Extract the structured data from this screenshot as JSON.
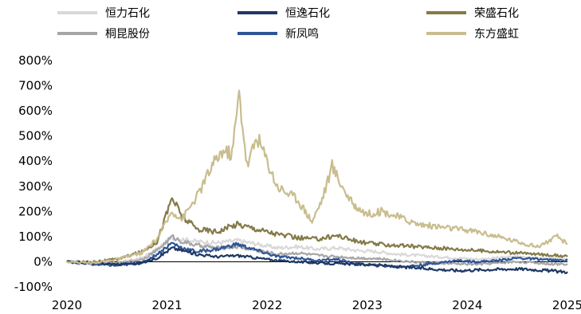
{
  "chart_data": {
    "type": "line",
    "title": "",
    "xlabel": "",
    "ylabel": "",
    "ylim": [
      -100,
      800
    ],
    "y_ticks": [
      -100,
      0,
      100,
      200,
      300,
      400,
      500,
      600,
      700,
      800
    ],
    "y_tick_labels": [
      "-100%",
      "0%",
      "100%",
      "200%",
      "300%",
      "400%",
      "500%",
      "600%",
      "700%",
      "800%"
    ],
    "xlim": [
      2020.0,
      2025.0
    ],
    "x_ticks": [
      2020,
      2021,
      2022,
      2023,
      2024,
      2025
    ],
    "x_tick_labels": [
      "2020",
      "2021",
      "2022",
      "2023",
      "2024",
      "2025"
    ],
    "zero_line": true,
    "grid": false,
    "legend_position": "top",
    "series": [
      {
        "name": "恒力石化",
        "color": "#d9d9d9",
        "x": [
          2020.0,
          2020.25,
          2020.5,
          2020.75,
          2020.9,
          2021.05,
          2021.15,
          2021.3,
          2021.5,
          2021.7,
          2021.9,
          2022.1,
          2022.3,
          2022.5,
          2022.7,
          2022.9,
          2023.1,
          2023.3,
          2023.5,
          2023.7,
          2023.9,
          2024.1,
          2024.3,
          2024.5,
          2024.7,
          2024.9,
          2025.0
        ],
        "values": [
          0,
          -3,
          -5,
          15,
          50,
          95,
          90,
          80,
          75,
          85,
          70,
          55,
          60,
          50,
          55,
          45,
          40,
          30,
          25,
          20,
          15,
          10,
          15,
          20,
          15,
          10,
          12
        ]
      },
      {
        "name": "桐昆股份",
        "color": "#a6a6a6",
        "x": [
          2020.0,
          2020.25,
          2020.5,
          2020.75,
          2020.9,
          2021.05,
          2021.15,
          2021.3,
          2021.5,
          2021.7,
          2021.9,
          2022.1,
          2022.3,
          2022.5,
          2022.7,
          2022.9,
          2023.1,
          2023.3,
          2023.5,
          2023.7,
          2023.9,
          2024.1,
          2024.3,
          2024.5,
          2024.7,
          2024.9,
          2025.0
        ],
        "values": [
          0,
          -5,
          -8,
          10,
          45,
          100,
          80,
          65,
          55,
          60,
          45,
          30,
          35,
          25,
          20,
          15,
          12,
          5,
          -2,
          -5,
          -8,
          -10,
          -5,
          0,
          -5,
          -10,
          -8
        ]
      },
      {
        "name": "恒逸石化",
        "color": "#1f3864",
        "x": [
          2020.0,
          2020.25,
          2020.5,
          2020.75,
          2020.9,
          2021.05,
          2021.15,
          2021.3,
          2021.5,
          2021.7,
          2021.9,
          2022.1,
          2022.3,
          2022.5,
          2022.7,
          2022.9,
          2023.1,
          2023.3,
          2023.5,
          2023.7,
          2023.9,
          2024.1,
          2024.3,
          2024.5,
          2024.7,
          2024.9,
          2025.0
        ],
        "values": [
          0,
          -5,
          -10,
          -5,
          15,
          55,
          45,
          30,
          20,
          25,
          15,
          5,
          0,
          -5,
          -8,
          -10,
          -12,
          -20,
          -25,
          -30,
          -35,
          -32,
          -30,
          -28,
          -32,
          -38,
          -40
        ]
      },
      {
        "name": "新凤鸣",
        "color": "#2e5597",
        "x": [
          2020.0,
          2020.25,
          2020.5,
          2020.75,
          2020.9,
          2021.05,
          2021.15,
          2021.3,
          2021.5,
          2021.7,
          2021.9,
          2022.1,
          2022.3,
          2022.5,
          2022.7,
          2022.9,
          2023.1,
          2023.3,
          2023.5,
          2023.7,
          2023.9,
          2024.1,
          2024.3,
          2024.5,
          2024.7,
          2024.9,
          2025.0
        ],
        "values": [
          0,
          -10,
          -15,
          -5,
          30,
          75,
          55,
          40,
          50,
          70,
          45,
          20,
          15,
          5,
          10,
          -10,
          -15,
          -20,
          -15,
          -5,
          5,
          0,
          5,
          15,
          10,
          5,
          5
        ]
      },
      {
        "name": "荣盛石化",
        "color": "#837a49",
        "x": [
          2020.0,
          2020.25,
          2020.5,
          2020.75,
          2020.9,
          2021.05,
          2021.15,
          2021.3,
          2021.5,
          2021.7,
          2021.9,
          2022.1,
          2022.3,
          2022.5,
          2022.7,
          2022.9,
          2023.1,
          2023.3,
          2023.5,
          2023.7,
          2023.9,
          2024.1,
          2024.3,
          2024.5,
          2024.7,
          2024.9,
          2025.0
        ],
        "values": [
          0,
          0,
          10,
          40,
          80,
          255,
          180,
          130,
          120,
          150,
          130,
          110,
          95,
          90,
          105,
          80,
          70,
          65,
          60,
          55,
          50,
          45,
          40,
          35,
          30,
          25,
          20
        ]
      },
      {
        "name": "东方盛虹",
        "color": "#c9bd8e",
        "x": [
          2020.0,
          2020.25,
          2020.5,
          2020.75,
          2020.9,
          2021.05,
          2021.15,
          2021.3,
          2021.45,
          2021.55,
          2021.65,
          2021.72,
          2021.8,
          2021.9,
          2022.0,
          2022.1,
          2022.3,
          2022.45,
          2022.55,
          2022.65,
          2022.75,
          2022.85,
          2023.0,
          2023.15,
          2023.3,
          2023.5,
          2023.7,
          2023.9,
          2024.1,
          2024.3,
          2024.5,
          2024.7,
          2024.9,
          2025.0
        ],
        "values": [
          0,
          -5,
          10,
          35,
          90,
          200,
          170,
          260,
          380,
          440,
          430,
          670,
          380,
          500,
          400,
          300,
          250,
          160,
          250,
          380,
          300,
          230,
          190,
          200,
          180,
          150,
          140,
          130,
          120,
          100,
          80,
          60,
          100,
          70
        ]
      }
    ]
  }
}
